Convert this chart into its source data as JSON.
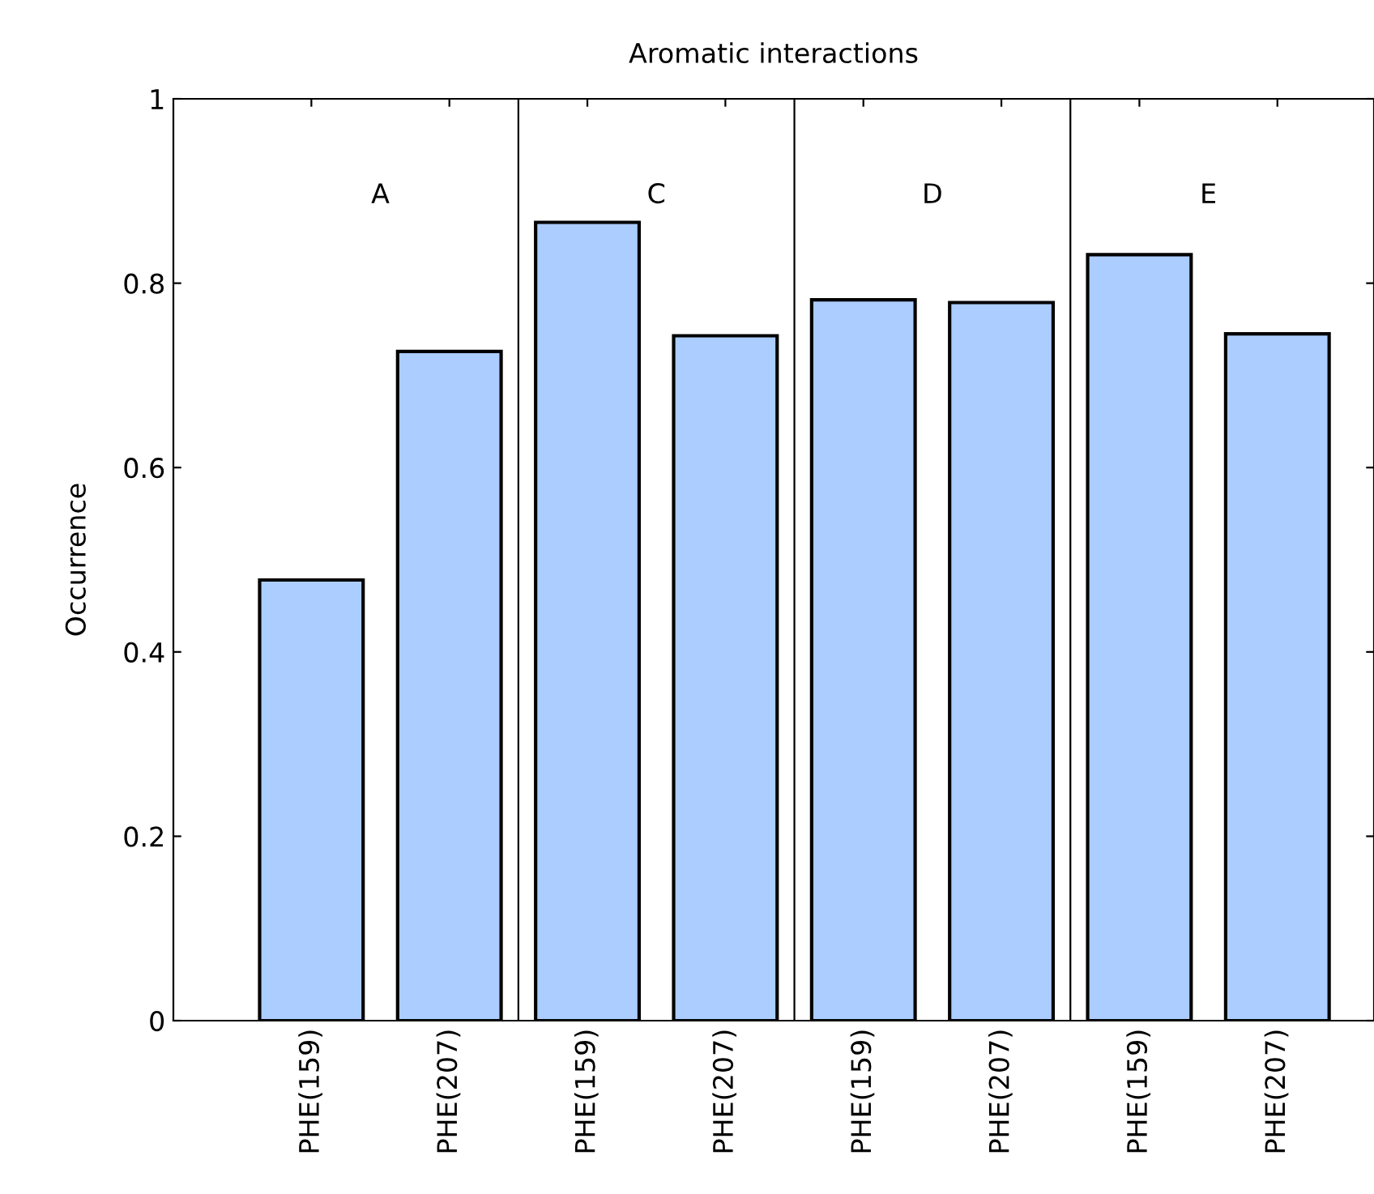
{
  "chart_data": {
    "type": "bar",
    "title": "Aromatic interactions",
    "ylabel": "Occurrence",
    "categories": [
      "PHE(159)",
      "PHE(207)",
      "PHE(159)",
      "PHE(207)",
      "PHE(159)",
      "PHE(207)",
      "PHE(159)",
      "PHE(207)"
    ],
    "values": [
      0.478,
      0.726,
      0.866,
      0.743,
      0.782,
      0.779,
      0.831,
      0.745
    ],
    "color": "#abcdff",
    "annotations": [
      "A",
      "C",
      "D",
      "E"
    ],
    "ylim": [
      0,
      1
    ],
    "yticks": [
      0,
      0.2,
      0.4,
      0.6,
      0.8,
      1
    ],
    "grid": false
  }
}
